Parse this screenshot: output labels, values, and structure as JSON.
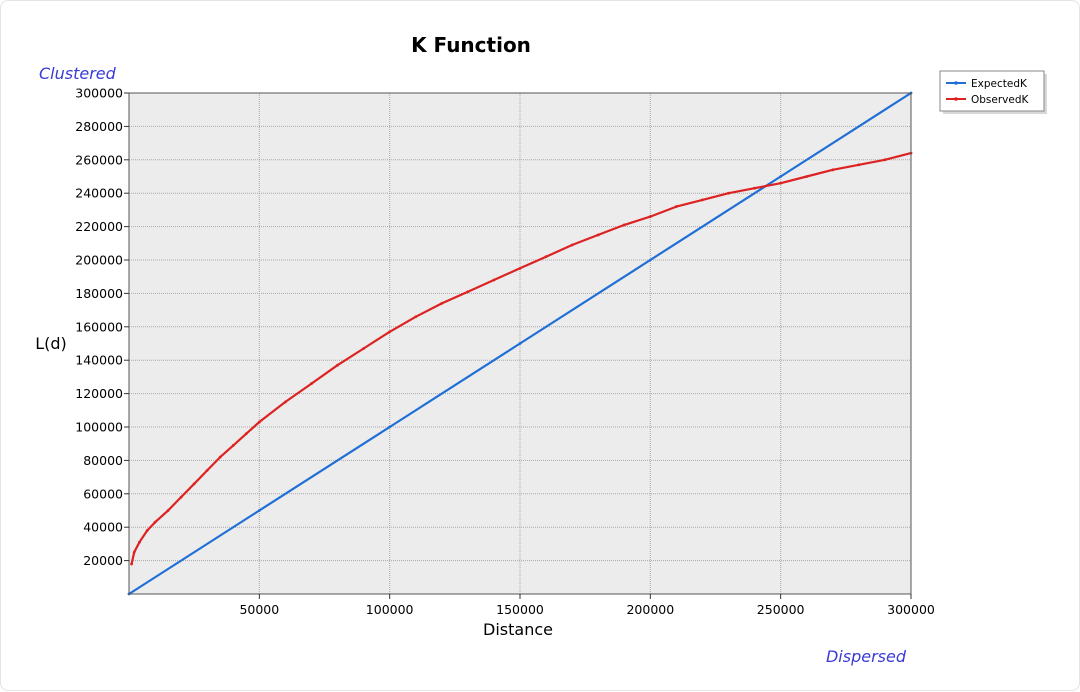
{
  "chart_data": {
    "type": "line",
    "title": "K Function",
    "xlabel": "Distance",
    "ylabel": "L(d)",
    "top_left_label": "Clustered",
    "bottom_right_label": "Dispersed",
    "xlim": [
      0,
      300000
    ],
    "ylim": [
      0,
      300000
    ],
    "xticks": [
      50000,
      100000,
      150000,
      200000,
      250000,
      300000
    ],
    "xtick_labels": [
      "50000",
      "100000",
      "150000",
      "200000",
      "250000",
      "300000"
    ],
    "yticks": [
      20000,
      40000,
      60000,
      80000,
      100000,
      120000,
      140000,
      160000,
      180000,
      200000,
      220000,
      240000,
      260000,
      280000,
      300000
    ],
    "ytick_labels": [
      "20000",
      "40000",
      "60000",
      "80000",
      "100000",
      "120000",
      "140000",
      "160000",
      "180000",
      "200000",
      "220000",
      "240000",
      "260000",
      "280000",
      "300000"
    ],
    "grid": true,
    "legend_position": "top-right, outside plot",
    "series": [
      {
        "name": "ExpectedK",
        "color": "#1f6fd6",
        "x": [
          0,
          50000,
          100000,
          150000,
          200000,
          250000,
          300000
        ],
        "y": [
          0,
          50000,
          100000,
          150000,
          200000,
          250000,
          300000
        ]
      },
      {
        "name": "ObservedK",
        "color": "#dd2222",
        "x": [
          1000,
          2000,
          4000,
          7000,
          10000,
          15000,
          20000,
          25000,
          30000,
          35000,
          40000,
          45000,
          50000,
          60000,
          70000,
          80000,
          90000,
          100000,
          110000,
          120000,
          130000,
          140000,
          150000,
          160000,
          170000,
          180000,
          190000,
          200000,
          210000,
          220000,
          230000,
          240000,
          250000,
          260000,
          270000,
          280000,
          290000,
          300000
        ],
        "y": [
          18000,
          25000,
          31000,
          38000,
          43000,
          50000,
          58000,
          66000,
          74000,
          82000,
          89000,
          96000,
          103000,
          115000,
          126000,
          137000,
          147000,
          157000,
          166000,
          174000,
          181000,
          188000,
          195000,
          202000,
          209000,
          215000,
          221000,
          226000,
          232000,
          236000,
          240000,
          243000,
          246000,
          250000,
          254000,
          257000,
          260000,
          264000
        ]
      }
    ]
  }
}
